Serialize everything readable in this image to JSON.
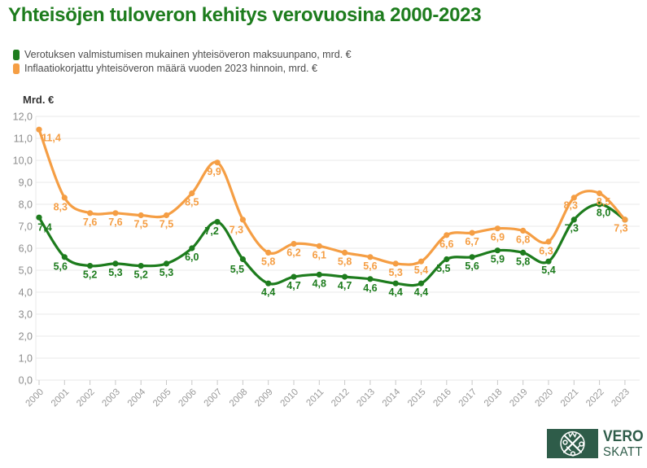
{
  "title": "Yhteisöjen tuloveron kehitys verovuosina 2000-2023",
  "title_color": "#1d7c1d",
  "legend": {
    "items": [
      {
        "label": "Verotuksen valmistumisen mukainen yhteisöveron maksuunpano, mrd. €",
        "color": "#1d7c1d"
      },
      {
        "label": "Inflaatiokorjattu yhteisöveron määrä vuoden 2023 hinnoin, mrd. €",
        "color": "#f59e44"
      }
    ]
  },
  "y_axis_title": "Mrd. €",
  "chart_data": {
    "type": "line",
    "title": "Yhteisöjen tuloveron kehitys verovuosina 2000-2023",
    "categories": [
      "2000",
      "2001",
      "2002",
      "2003",
      "2004",
      "2005",
      "2006",
      "2007",
      "2008",
      "2009",
      "2010",
      "2011",
      "2012",
      "2013",
      "2014",
      "2015",
      "2016",
      "2017",
      "2018",
      "2019",
      "2020",
      "2021",
      "2022",
      "2023"
    ],
    "series": [
      {
        "name": "Verotuksen valmistumisen mukainen yhteisöveron maksuunpano, mrd. €",
        "color": "#1d7c1d",
        "values": [
          7.4,
          5.6,
          5.2,
          5.3,
          5.2,
          5.3,
          6.0,
          7.2,
          5.5,
          4.4,
          4.7,
          4.8,
          4.7,
          4.6,
          4.4,
          4.4,
          5.5,
          5.6,
          5.9,
          5.8,
          5.4,
          7.3,
          8.0,
          7.3
        ],
        "labels": [
          "7,4",
          "5,6",
          "5,2",
          "5,3",
          "5,2",
          "5,3",
          "6,0",
          "7,2",
          "5,5",
          "4,4",
          "4,7",
          "4,8",
          "4,7",
          "4,6",
          "4,4",
          "4,4",
          "5,5",
          "5,6",
          "5,9",
          "5,8",
          "5,4",
          "7,3",
          "8,0",
          ""
        ]
      },
      {
        "name": "Inflaatiokorjattu yhteisöveron määrä vuoden 2023 hinnoin, mrd. €",
        "color": "#f59e44",
        "values": [
          11.4,
          8.3,
          7.6,
          7.6,
          7.5,
          7.5,
          8.5,
          9.9,
          7.3,
          5.8,
          6.2,
          6.1,
          5.8,
          5.6,
          5.3,
          5.4,
          6.6,
          6.7,
          6.9,
          6.8,
          6.3,
          8.3,
          8.5,
          7.3
        ],
        "labels": [
          "11,4",
          "8,3",
          "7,6",
          "7,6",
          "7,5",
          "7,5",
          "8,5",
          "9,9",
          "7,3",
          "5,8",
          "6,2",
          "6,1",
          "5,8",
          "5,6",
          "5,3",
          "5,4",
          "6,6",
          "6,7",
          "6,9",
          "6,8",
          "6,3",
          "8,3",
          "8,5",
          "7,3"
        ]
      }
    ],
    "ylabel": "Mrd. €",
    "xlabel": "",
    "ylim": [
      0,
      12
    ],
    "y_tick_labels": [
      "0,0",
      "1,0",
      "2,0",
      "3,0",
      "4,0",
      "5,0",
      "6,0",
      "7,0",
      "8,0",
      "9,0",
      "10,0",
      "11,0",
      "12,0"
    ],
    "grid": "horizontal",
    "legend_position": "top-left"
  },
  "logo": {
    "text_top": "VERO",
    "text_bottom": "SKATT",
    "color": "#2e5c49"
  }
}
